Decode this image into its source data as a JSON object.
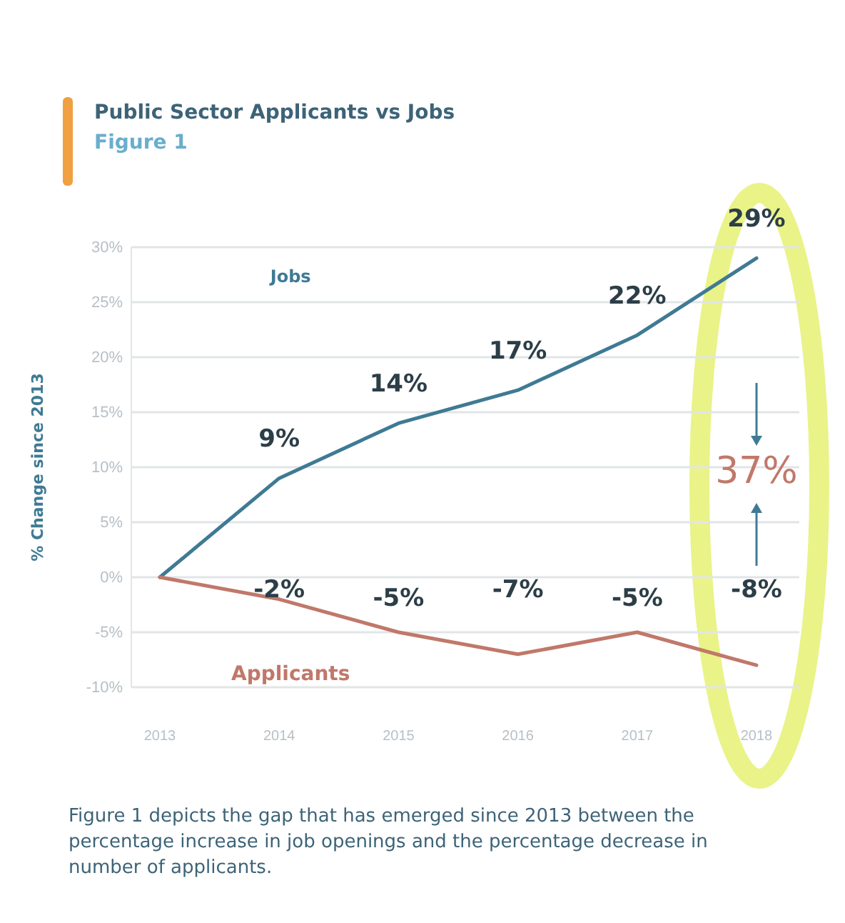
{
  "chart_data": {
    "type": "line",
    "title": "Public Sector Applicants vs Jobs",
    "subtitle": "Figure 1",
    "ylabel": "% Change since 2013",
    "categories": [
      "2013",
      "2014",
      "2015",
      "2016",
      "2017",
      "2018"
    ],
    "series": [
      {
        "name": "Jobs",
        "color": "#3f7a94",
        "values": [
          0,
          9,
          14,
          17,
          22,
          29
        ],
        "value_labels": [
          null,
          "9%",
          "14%",
          "17%",
          "22%",
          "29%"
        ]
      },
      {
        "name": "Applicants",
        "color": "#c0786a",
        "values": [
          0,
          -2,
          -5,
          -7,
          -5,
          -8
        ],
        "value_labels": [
          null,
          "-2%",
          "-5%",
          "-7%",
          "-5%",
          "-8%"
        ]
      }
    ],
    "ylim": [
      -10,
      30
    ],
    "yticks": [
      {
        "value": -10,
        "label": "-10%"
      },
      {
        "value": -5,
        "label": "-5%"
      },
      {
        "value": 0,
        "label": "0%"
      },
      {
        "value": 5,
        "label": "5%"
      },
      {
        "value": 10,
        "label": "10%"
      },
      {
        "value": 15,
        "label": "15%"
      },
      {
        "value": 20,
        "label": "20%"
      },
      {
        "value": 25,
        "label": "25%"
      },
      {
        "value": 30,
        "label": "30%"
      }
    ],
    "grid": "y",
    "marker": "none",
    "line_style": "solid",
    "annotations": [
      "37%",
      "Figure 1 depicts the gap that has emerged since 2013 between the percentage increase in job openings and the percentage decrease in number of applicants."
    ]
  }
}
